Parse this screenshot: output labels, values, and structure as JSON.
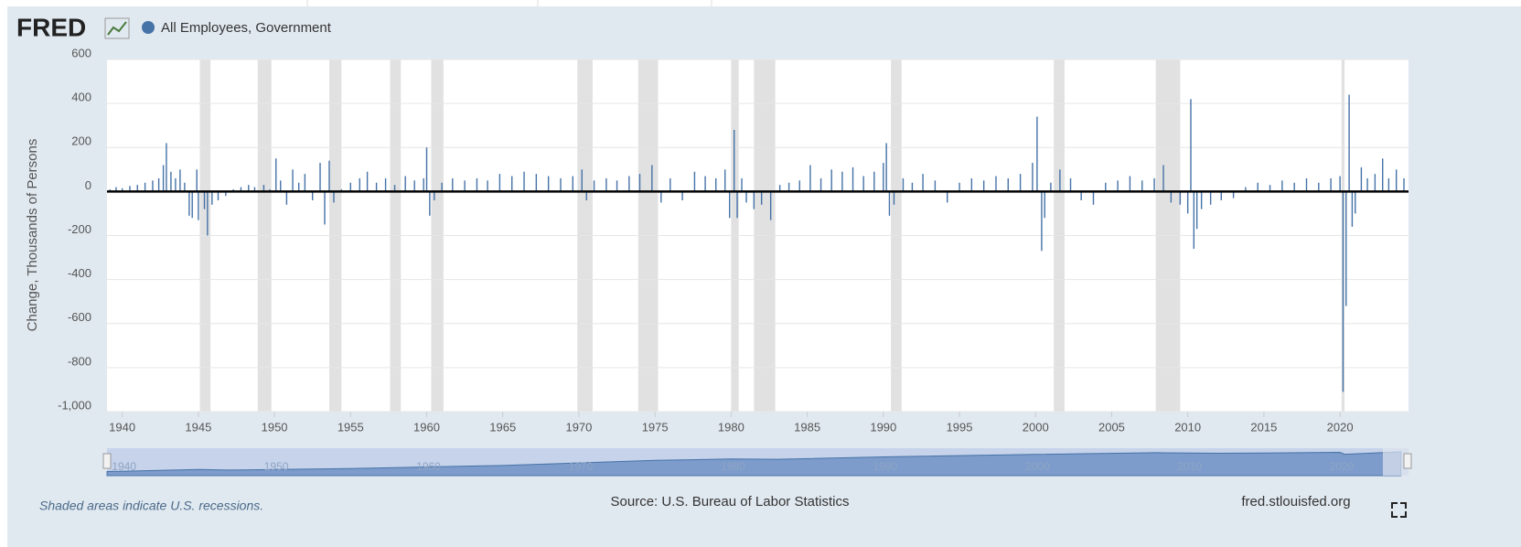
{
  "chart_data": {
    "type": "bar",
    "logo": "FRED",
    "series": [
      {
        "name": "All Employees, Government",
        "color": "#4572a7",
        "x": [
          1939.2,
          1939.6,
          1940.0,
          1940.5,
          1941.0,
          1941.5,
          1942.0,
          1942.4,
          1942.7,
          1942.9,
          1943.2,
          1943.5,
          1943.8,
          1944.1,
          1944.4,
          1944.6,
          1944.9,
          1945.0,
          1945.4,
          1945.6,
          1945.9,
          1946.3,
          1946.8,
          1947.3,
          1947.8,
          1948.3,
          1948.7,
          1949.3,
          1949.7,
          1950.1,
          1950.4,
          1950.8,
          1951.2,
          1951.6,
          1952.0,
          1952.5,
          1953.0,
          1953.3,
          1953.6,
          1953.9,
          1954.4,
          1955.0,
          1955.6,
          1956.1,
          1956.7,
          1957.3,
          1957.9,
          1958.6,
          1959.2,
          1959.8,
          1960.0,
          1960.2,
          1960.5,
          1961.0,
          1961.7,
          1962.5,
          1963.3,
          1964.0,
          1964.8,
          1965.6,
          1966.4,
          1967.2,
          1968.0,
          1968.8,
          1969.6,
          1970.2,
          1970.5,
          1971.0,
          1971.8,
          1972.5,
          1973.3,
          1974.0,
          1974.8,
          1975.4,
          1976.0,
          1976.8,
          1977.6,
          1978.3,
          1979.0,
          1979.6,
          1979.9,
          1980.2,
          1980.4,
          1980.7,
          1981.0,
          1981.5,
          1982.0,
          1982.6,
          1983.2,
          1983.8,
          1984.5,
          1985.2,
          1985.9,
          1986.6,
          1987.3,
          1988.0,
          1988.7,
          1989.4,
          1990.0,
          1990.2,
          1990.4,
          1990.7,
          1991.3,
          1991.9,
          1992.6,
          1993.4,
          1994.2,
          1995.0,
          1995.8,
          1996.6,
          1997.4,
          1998.2,
          1999.0,
          1999.8,
          2000.1,
          2000.4,
          2000.6,
          2001.0,
          2001.6,
          2002.3,
          2003.0,
          2003.8,
          2004.6,
          2005.4,
          2006.2,
          2007.0,
          2007.8,
          2008.4,
          2008.9,
          2009.5,
          2010.0,
          2010.2,
          2010.4,
          2010.6,
          2010.9,
          2011.5,
          2012.2,
          2013.0,
          2013.8,
          2014.6,
          2015.4,
          2016.2,
          2017.0,
          2017.8,
          2018.6,
          2019.4,
          2020.0,
          2020.2,
          2020.4,
          2020.6,
          2020.8,
          2021.0,
          2021.4,
          2021.8,
          2022.3,
          2022.8,
          2023.2,
          2023.7,
          2024.2
        ],
        "values": [
          10,
          20,
          15,
          25,
          30,
          40,
          50,
          60,
          120,
          220,
          90,
          60,
          100,
          40,
          -110,
          -120,
          100,
          -130,
          -80,
          -200,
          -60,
          -40,
          -20,
          10,
          20,
          30,
          20,
          30,
          10,
          150,
          50,
          -60,
          100,
          40,
          80,
          -40,
          130,
          -150,
          140,
          -50,
          10,
          40,
          60,
          90,
          40,
          60,
          30,
          70,
          50,
          60,
          200,
          -110,
          -40,
          40,
          60,
          50,
          60,
          50,
          80,
          70,
          90,
          80,
          70,
          60,
          70,
          100,
          -40,
          50,
          60,
          50,
          70,
          80,
          120,
          -50,
          60,
          -40,
          90,
          70,
          60,
          100,
          -120,
          280,
          -120,
          60,
          -50,
          -80,
          -60,
          -130,
          30,
          40,
          50,
          120,
          60,
          100,
          90,
          110,
          70,
          90,
          130,
          220,
          -110,
          -60,
          60,
          40,
          80,
          50,
          -50,
          40,
          60,
          50,
          70,
          60,
          80,
          130,
          340,
          -270,
          -120,
          40,
          100,
          60,
          -40,
          -60,
          40,
          50,
          70,
          50,
          60,
          120,
          -50,
          -60,
          -100,
          420,
          -260,
          -170,
          -80,
          -60,
          -40,
          -30,
          20,
          40,
          30,
          50,
          40,
          60,
          40,
          60,
          70,
          -910,
          -520,
          440,
          -160,
          -100,
          110,
          60,
          80,
          150,
          60,
          100,
          60
        ]
      }
    ],
    "recessions": [
      [
        1945.1,
        1945.8
      ],
      [
        1948.9,
        1949.8
      ],
      [
        1953.6,
        1954.4
      ],
      [
        1957.6,
        1958.3
      ],
      [
        1960.3,
        1961.1
      ],
      [
        1969.9,
        1970.9
      ],
      [
        1973.9,
        1975.2
      ],
      [
        1980.0,
        1980.5
      ],
      [
        1981.5,
        1982.9
      ],
      [
        1990.5,
        1991.2
      ],
      [
        2001.2,
        2001.9
      ],
      [
        2007.9,
        2009.5
      ],
      [
        2020.1,
        2020.3
      ]
    ],
    "ylabel": "Change, Thousands of Persons",
    "xlim": [
      1939,
      2024.5
    ],
    "ylim": [
      -1000,
      600
    ],
    "xticks": [
      1940,
      1945,
      1950,
      1955,
      1960,
      1965,
      1970,
      1975,
      1980,
      1985,
      1990,
      1995,
      2000,
      2005,
      2010,
      2015,
      2020
    ],
    "yticks": [
      {
        "value": -1000,
        "label": "-1,000"
      },
      -800,
      -600,
      -400,
      -200,
      0,
      200,
      400,
      600
    ],
    "grid": true,
    "navigator": {
      "x": [
        1939,
        1945,
        1947,
        1955,
        1965,
        1975,
        1980,
        1983,
        1990,
        2000,
        2008,
        2012,
        2020,
        2020.3,
        2024
      ],
      "values": [
        4000,
        6000,
        5500,
        7000,
        10000,
        15000,
        16300,
        16000,
        18400,
        20800,
        22500,
        21900,
        22800,
        21000,
        23300
      ],
      "xticks": [
        1940,
        1950,
        1960,
        1970,
        1980,
        1990,
        2000,
        2010,
        2020
      ]
    },
    "note": "Shaded areas indicate U.S. recessions.",
    "source": "Source: U.S. Bureau of Labor Statistics",
    "site": "fred.stlouisfed.org"
  }
}
